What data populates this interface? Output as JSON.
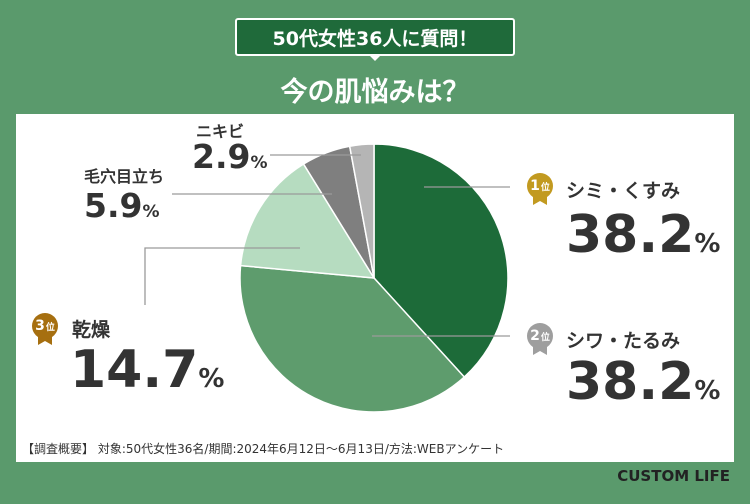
{
  "header": {
    "badge": "50代女性36人に質問！",
    "title": "今の肌悩みは？"
  },
  "chart_data": {
    "type": "pie",
    "categories": [
      "シミ・くすみ",
      "シワ・たるみ",
      "乾燥",
      "毛穴目立ち",
      "ニキビ"
    ],
    "values": [
      38.2,
      38.2,
      14.7,
      5.9,
      2.9
    ],
    "unit": "%",
    "colors": [
      "#1d6b39",
      "#5e9c6d",
      "#b6dcc0",
      "#7f7f7f",
      "#b5b5b5"
    ],
    "ranks": [
      {
        "num": "1",
        "suffix": "位",
        "color": "#c29a20"
      },
      {
        "num": "2",
        "suffix": "位",
        "color": "#9e9e9e"
      },
      {
        "num": "3",
        "suffix": "位",
        "color": "#a66f10"
      }
    ],
    "labels": {
      "s0": {
        "name": "シミ・くすみ",
        "value": "38.2",
        "unit": "%"
      },
      "s1": {
        "name": "シワ・たるみ",
        "value": "38.2",
        "unit": "%"
      },
      "s2": {
        "name": "乾燥",
        "value": "14.7",
        "unit": "%"
      },
      "s3": {
        "name": "毛穴目立ち",
        "value": "5.9",
        "unit": "%"
      },
      "s4": {
        "name": "ニキビ",
        "value": "2.9",
        "unit": "%"
      }
    }
  },
  "footer": {
    "survey": "【調査概要】 対象:50代女性36名/期間:2024年6月12日〜6月13日/方法:WEBアンケート",
    "brand": "CUSTOM LIFE"
  }
}
